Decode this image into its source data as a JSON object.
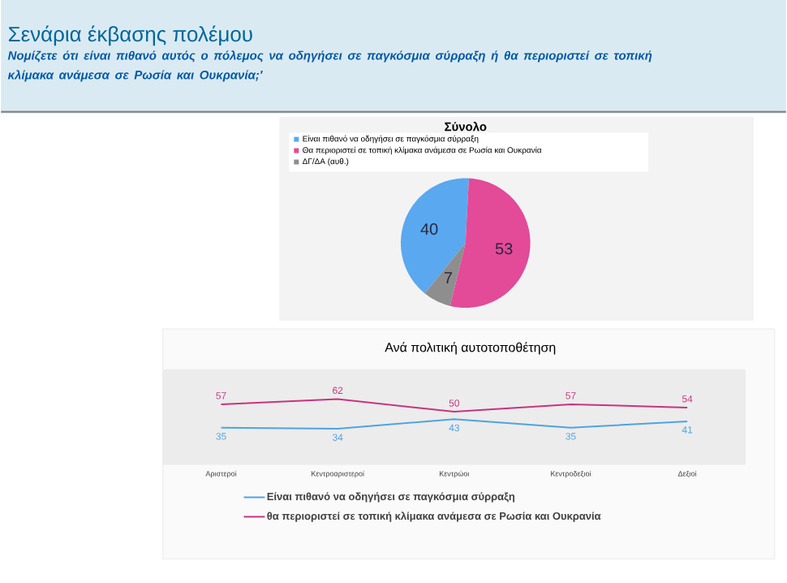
{
  "chart_data": [
    {
      "type": "pie",
      "title": "Σύνολο",
      "annotations": [
        "Σενάρια έκβασης πολέμου",
        "Νομίζετε ότι είναι πιθανό αυτός ο πόλεμος να οδηγήσει σε παγκόσμια σύρραξη ή θα περιοριστεί σε τοπική κλίμακα ανάμεσα σε Ρωσία και Ουκρανία;'"
      ],
      "categories": [
        "Είναι πιθανό να οδηγήσει σε παγκόσμια σύρραξη",
        "Θα περιοριστεί σε τοπική κλίμακα ανάμεσα σε Ρωσία και Ουκρανία",
        "ΔΓ/ΔΑ (αυθ.)"
      ],
      "values": [
        40,
        53,
        7
      ],
      "colors": [
        "#5aa8f0",
        "#e34a98",
        "#8e8e8e"
      ],
      "data_labels": true,
      "legend": "top"
    },
    {
      "type": "line",
      "title": "Ανά πολιτική αυτοτοποθέτηση",
      "categories": [
        "Αριστεροί",
        "Κεντροαριστεροί",
        "Κεντρώοι",
        "Κεντροδεξιοί",
        "Δεξιοί"
      ],
      "series": [
        {
          "name": "Είναι πιθανό να οδηγήσει σε παγκόσμια σύρραξη",
          "color": "#4fa3e3",
          "values": [
            35,
            34,
            43,
            35,
            41
          ]
        },
        {
          "name": "θα περιοριστεί σε τοπική κλίμακα ανάμεσα σε Ρωσία και Ουκρανία",
          "color": "#c9337f",
          "values": [
            57,
            62,
            50,
            57,
            54
          ]
        }
      ],
      "data_labels": true,
      "legend": "bottom"
    }
  ]
}
